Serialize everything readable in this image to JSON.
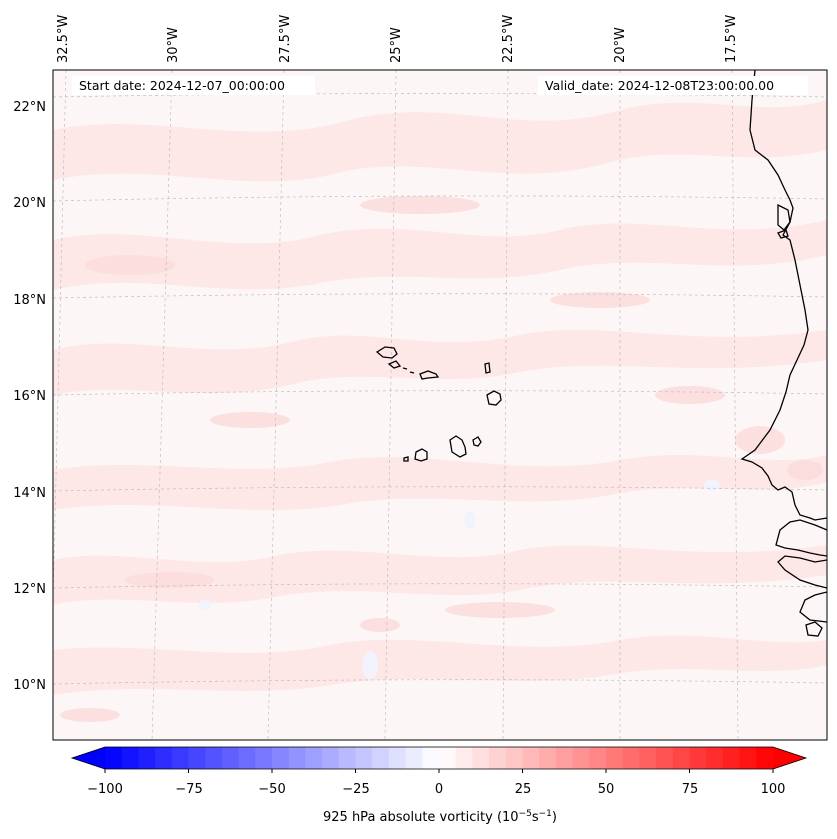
{
  "header": {
    "start_date": "Start date: 2024-12-07_00:00:00",
    "valid_date": "Valid_date: 2024-12-08T23:00:00.00"
  },
  "map": {
    "lon_labels": [
      "32.5°W",
      "30°W",
      "27.5°W",
      "25°W",
      "22.5°W",
      "20°W",
      "17.5°W"
    ],
    "lat_labels": [
      "22°N",
      "20°N",
      "18°N",
      "16°N",
      "14°N",
      "12°N",
      "10°N"
    ],
    "field": "925 hPa absolute vorticity"
  },
  "colorbar": {
    "label_prefix": "925 hPa absolute vorticity (10",
    "label_exp1": "−5",
    "label_mid": "s",
    "label_exp2": "−1",
    "label_suffix": ")",
    "ticks": [
      "−100",
      "−75",
      "−50",
      "−25",
      "0",
      "25",
      "50",
      "75",
      "100"
    ],
    "min": -100,
    "max": 100,
    "step": 5,
    "colors": {
      "low": "#0000ff",
      "mid": "#ffffff",
      "high": "#ff0000"
    }
  }
}
